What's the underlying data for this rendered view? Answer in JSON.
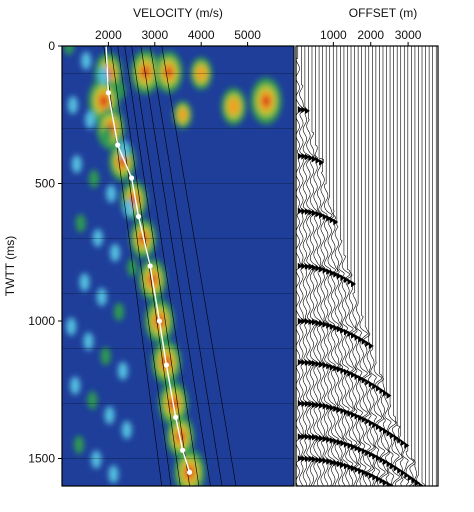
{
  "chart_data": [
    {
      "type": "heatmap",
      "title": "VELOCITY (m/s)",
      "ylabel": "TWTT (ms)",
      "x_ticks": [
        2000,
        3000,
        4000,
        5000
      ],
      "y_ticks": [
        0,
        500,
        1000,
        1500
      ],
      "xlim": [
        1000,
        6000
      ],
      "ylim": [
        0,
        1600
      ],
      "y_inverted": true,
      "colormap": [
        "#1e3e9a",
        "#2f6fc8",
        "#55c0e0",
        "#2e9a52",
        "#a8c83a",
        "#f0a020",
        "#d61e1e"
      ],
      "picked_velocity": {
        "twtt": [
          0,
          170,
          360,
          480,
          620,
          800,
          1000,
          1160,
          1350,
          1470,
          1550
        ],
        "velocity": [
          1950,
          2000,
          2200,
          2500,
          2650,
          2900,
          3100,
          3250,
          3450,
          3600,
          3750
        ]
      },
      "velocity_guides": [
        {
          "twtt": [
            0,
            1600
          ],
          "velocity": [
            1900,
            3150
          ]
        },
        {
          "twtt": [
            0,
            1600
          ],
          "velocity": [
            2050,
            3350
          ]
        },
        {
          "twtt": [
            0,
            1600
          ],
          "velocity": [
            2200,
            3550
          ]
        },
        {
          "twtt": [
            0,
            1600
          ],
          "velocity": [
            2350,
            3750
          ]
        },
        {
          "twtt": [
            0,
            1600
          ],
          "velocity": [
            2500,
            3950
          ]
        },
        {
          "twtt": [
            0,
            1600
          ],
          "velocity": [
            2700,
            4200
          ]
        },
        {
          "twtt": [
            0,
            1600
          ],
          "velocity": [
            2900,
            4450
          ]
        },
        {
          "twtt": [
            0,
            1600
          ],
          "velocity": [
            3150,
            4750
          ]
        }
      ],
      "horizontal_gridlines_twtt": [
        100,
        300,
        500,
        700,
        900,
        1100,
        1300,
        1500
      ],
      "semblance_peaks": [
        {
          "twtt": 100,
          "velocity": 2000,
          "amplitude": 0.9
        },
        {
          "twtt": 200,
          "velocity": 1900,
          "amplitude": 1.0
        },
        {
          "twtt": 300,
          "velocity": 2050,
          "amplitude": 0.9
        },
        {
          "twtt": 420,
          "velocity": 2300,
          "amplitude": 0.85
        },
        {
          "twtt": 560,
          "velocity": 2550,
          "amplitude": 0.85
        },
        {
          "twtt": 700,
          "velocity": 2750,
          "amplitude": 0.85
        },
        {
          "twtt": 850,
          "velocity": 2950,
          "amplitude": 0.9
        },
        {
          "twtt": 1000,
          "velocity": 3100,
          "amplitude": 0.95
        },
        {
          "twtt": 1150,
          "velocity": 3250,
          "amplitude": 0.95
        },
        {
          "twtt": 1300,
          "velocity": 3400,
          "amplitude": 0.95
        },
        {
          "twtt": 1420,
          "velocity": 3550,
          "amplitude": 0.9
        },
        {
          "twtt": 1550,
          "velocity": 3750,
          "amplitude": 1.0
        },
        {
          "twtt": 95,
          "velocity": 2800,
          "amplitude": 0.95
        },
        {
          "twtt": 95,
          "velocity": 3300,
          "amplitude": 0.9
        },
        {
          "twtt": 100,
          "velocity": 4000,
          "amplitude": 0.7
        },
        {
          "twtt": 200,
          "velocity": 5400,
          "amplitude": 1.0
        },
        {
          "twtt": 220,
          "velocity": 4700,
          "amplitude": 0.8
        },
        {
          "twtt": 250,
          "velocity": 3600,
          "amplitude": 0.6
        }
      ]
    },
    {
      "type": "seismic_gather",
      "title": "OFFSET (m)",
      "x_ticks": [
        1000,
        2000,
        3000
      ],
      "xlim": [
        0,
        3800
      ],
      "ylim": [
        0,
        1600
      ],
      "trace_spacing_m": 95,
      "mute_edge": {
        "twtt": [
          0,
          200,
          400,
          600,
          800,
          1000,
          1200,
          1400,
          1600
        ],
        "offset": [
          0,
          200,
          600,
          1000,
          1350,
          1800,
          2250,
          2750,
          3400
        ]
      },
      "strong_reflections_twtt": [
        230,
        400,
        600,
        800,
        1000,
        1150,
        1300,
        1420,
        1500
      ]
    }
  ]
}
